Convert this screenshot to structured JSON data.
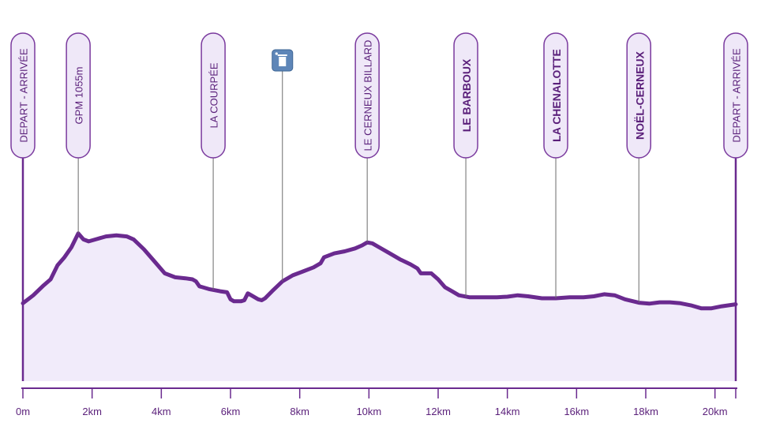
{
  "chart_data": {
    "type": "area",
    "title": "",
    "xlabel": "",
    "ylabel": "",
    "xlim": [
      0,
      20.6
    ],
    "x_ticks": [
      {
        "value": 0,
        "label": "0m"
      },
      {
        "value": 2,
        "label": "2km"
      },
      {
        "value": 4,
        "label": "4km"
      },
      {
        "value": 6,
        "label": "6km"
      },
      {
        "value": 8,
        "label": "8km"
      },
      {
        "value": 10,
        "label": "10km"
      },
      {
        "value": 12,
        "label": "12km"
      },
      {
        "value": 14,
        "label": "14km"
      },
      {
        "value": 16,
        "label": "16km"
      },
      {
        "value": 18,
        "label": "18km"
      },
      {
        "value": 20,
        "label": "20km"
      }
    ],
    "ylim": [
      0,
      100
    ],
    "grid": false,
    "colors": {
      "line": "#6a2a8f",
      "fill": "#f1ebfa",
      "pill_fill": "#efe8f8",
      "pill_border": "#7a3a9e",
      "text": "#5a1f7a",
      "axis": "#6a2a8f",
      "icon_bg": "#5e86b8"
    },
    "profile": [
      [
        0.0,
        39
      ],
      [
        0.3,
        43
      ],
      [
        0.6,
        48
      ],
      [
        0.8,
        51
      ],
      [
        1.0,
        58
      ],
      [
        1.2,
        62
      ],
      [
        1.4,
        67
      ],
      [
        1.6,
        74
      ],
      [
        1.75,
        71
      ],
      [
        1.9,
        70
      ],
      [
        2.1,
        71
      ],
      [
        2.4,
        72.5
      ],
      [
        2.7,
        73
      ],
      [
        3.0,
        72.5
      ],
      [
        3.2,
        71
      ],
      [
        3.5,
        66
      ],
      [
        3.8,
        60
      ],
      [
        4.1,
        54
      ],
      [
        4.4,
        52
      ],
      [
        4.7,
        51.5
      ],
      [
        4.9,
        51
      ],
      [
        5.0,
        50
      ],
      [
        5.1,
        47.5
      ],
      [
        5.4,
        46
      ],
      [
        5.7,
        45
      ],
      [
        5.9,
        44.5
      ],
      [
        6.0,
        41
      ],
      [
        6.1,
        40
      ],
      [
        6.3,
        40
      ],
      [
        6.4,
        40.5
      ],
      [
        6.5,
        44
      ],
      [
        6.6,
        43
      ],
      [
        6.8,
        41
      ],
      [
        6.9,
        40.5
      ],
      [
        7.0,
        41.5
      ],
      [
        7.2,
        45
      ],
      [
        7.5,
        50
      ],
      [
        7.8,
        53
      ],
      [
        8.1,
        55
      ],
      [
        8.4,
        57
      ],
      [
        8.6,
        59
      ],
      [
        8.7,
        62
      ],
      [
        9.0,
        64
      ],
      [
        9.3,
        65
      ],
      [
        9.6,
        66.5
      ],
      [
        9.8,
        68
      ],
      [
        9.95,
        69.5
      ],
      [
        10.1,
        69
      ],
      [
        10.3,
        67
      ],
      [
        10.6,
        64
      ],
      [
        10.9,
        61
      ],
      [
        11.2,
        58.5
      ],
      [
        11.4,
        56.5
      ],
      [
        11.5,
        54
      ],
      [
        11.6,
        54
      ],
      [
        11.8,
        54
      ],
      [
        12.0,
        51
      ],
      [
        12.2,
        47
      ],
      [
        12.4,
        45
      ],
      [
        12.6,
        43
      ],
      [
        12.9,
        42
      ],
      [
        13.3,
        42
      ],
      [
        13.7,
        42
      ],
      [
        14.0,
        42.3
      ],
      [
        14.3,
        43
      ],
      [
        14.6,
        42.5
      ],
      [
        15.0,
        41.5
      ],
      [
        15.4,
        41.5
      ],
      [
        15.8,
        42
      ],
      [
        16.2,
        42
      ],
      [
        16.5,
        42.5
      ],
      [
        16.8,
        43.5
      ],
      [
        17.1,
        43
      ],
      [
        17.4,
        41
      ],
      [
        17.8,
        39.3
      ],
      [
        18.1,
        38.8
      ],
      [
        18.4,
        39.5
      ],
      [
        18.7,
        39.5
      ],
      [
        19.0,
        39
      ],
      [
        19.3,
        38
      ],
      [
        19.6,
        36.5
      ],
      [
        19.9,
        36.5
      ],
      [
        20.2,
        37.5
      ],
      [
        20.6,
        38.5
      ]
    ],
    "markers": [
      {
        "x": 0.0,
        "label": "DEPART - ARRIVÉE",
        "bold": false,
        "line_to": "baseline",
        "pill_top": 42,
        "pill_bottom": 200
      },
      {
        "x": 1.6,
        "label": "GPM 1055m",
        "bold": false,
        "line_to": "profile",
        "pill_top": 42,
        "pill_bottom": 200
      },
      {
        "x": 5.5,
        "label": "LA COURPÉE",
        "bold": false,
        "line_to": "profile",
        "pill_top": 42,
        "pill_bottom": 200
      },
      {
        "x": 9.95,
        "label": "LE CERNEUX BILLARD",
        "bold": false,
        "line_to": "profile",
        "pill_top": 42,
        "pill_bottom": 200
      },
      {
        "x": 12.8,
        "label": "LE BARBOUX",
        "bold": true,
        "line_to": "profile",
        "pill_top": 42,
        "pill_bottom": 200
      },
      {
        "x": 15.4,
        "label": "LA CHENALOTTE",
        "bold": true,
        "line_to": "profile",
        "pill_top": 42,
        "pill_bottom": 200
      },
      {
        "x": 17.8,
        "label": "NOËL-CERNEUX",
        "bold": true,
        "line_to": "profile",
        "pill_top": 42,
        "pill_bottom": 200
      },
      {
        "x": 20.6,
        "label": "DEPART - ARRIVÉE",
        "bold": false,
        "line_to": "baseline",
        "pill_top": 42,
        "pill_bottom": 200
      }
    ],
    "icons": [
      {
        "x": 7.5,
        "name": "trash-bin-icon"
      }
    ]
  }
}
